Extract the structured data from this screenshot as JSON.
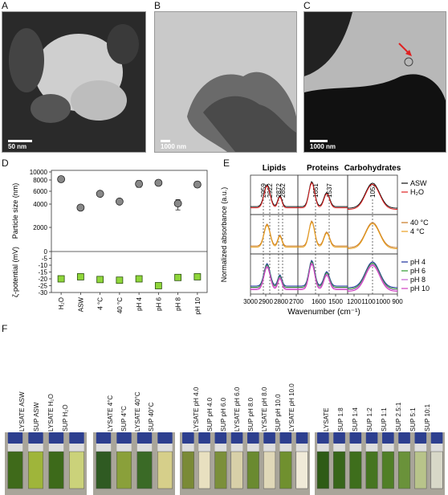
{
  "panels": {
    "A": {
      "letter": "A",
      "scale_label": "50 nm"
    },
    "B": {
      "letter": "B",
      "scale_label": "1000 nm"
    },
    "C": {
      "letter": "C",
      "scale_label": "1000 nm"
    },
    "D": {
      "letter": "D"
    },
    "E": {
      "letter": "E"
    },
    "F": {
      "letter": "F"
    }
  },
  "colors": {
    "marker_gray": "#888888",
    "marker_green": "#8fd63a",
    "arrow_red": "#e02020"
  },
  "chart_data": [
    {
      "type": "scatter",
      "panel": "D",
      "categories": [
        "H₂O",
        "ASW",
        "4 °C",
        "40 °C",
        "pH 4",
        "pH 6",
        "pH 8",
        "pH 10"
      ],
      "ylabel_top": "Particle size (nm)",
      "ylabel_bottom": "ζ-potential (mV)",
      "yticks_top": [
        "10000",
        "8000",
        "6000",
        "4000",
        "2000",
        "0"
      ],
      "yticks_bottom": [
        "-5",
        "-10",
        "-15",
        "-20",
        "-25",
        "-30"
      ],
      "series": [
        {
          "values": [
            8200,
            3700,
            5600,
            4400,
            7300,
            7500,
            4100,
            7200
          ],
          "errors": [
            350,
            150,
            400,
            300,
            600,
            400,
            600,
            500
          ]
        },
        {
          "values": [
            -20,
            -18.5,
            -20.5,
            -21,
            -20,
            -25,
            -19,
            -18.5
          ],
          "errors": [
            1,
            0.8,
            0.8,
            0.8,
            1,
            0.8,
            0.8,
            0.8
          ]
        }
      ]
    },
    {
      "type": "line",
      "panel": "E",
      "section_titles": [
        "Lipids",
        "Proteins",
        "Carbohydrates"
      ],
      "peak_labels": [
        "2959",
        "2922",
        "2872",
        "2852",
        "1651",
        "1537",
        "1052"
      ],
      "xlabel": "Wavenumber (cm⁻¹)",
      "ylabel": "Normalized absorbance (a.u.)",
      "xticks": [
        "3000",
        "2900",
        "2800",
        "2700",
        "1600",
        "1500",
        "1200",
        "1100",
        "1000",
        "900"
      ],
      "legend_groups": [
        [
          {
            "name": "ASW",
            "color": "#111111"
          },
          {
            "name": "H₂O",
            "color": "#e02020"
          }
        ],
        [
          {
            "name": "40 °C",
            "color": "#c87820"
          },
          {
            "name": "4 °C",
            "color": "#e8a020"
          }
        ],
        [
          {
            "name": "pH 4",
            "color": "#1a2f9c"
          },
          {
            "name": "pH 6",
            "color": "#2e9a2e"
          },
          {
            "name": "pH 8",
            "color": "#c060d0"
          },
          {
            "name": "pH 10",
            "color": "#d040c0"
          }
        ]
      ]
    }
  ],
  "vials": {
    "group1": [
      "LYSATE ASW",
      "SUP ASW",
      "LYSATE H₂O",
      "SUP H₂O"
    ],
    "group2": [
      "LYSATE 4°C",
      "SUP 4°C",
      "LYSATE 40°C",
      "SUP 40°C"
    ],
    "group3": [
      "LYSATE pH 4.0",
      "SUP pH 4.0",
      "SUP pH 6.0",
      "LYSATE pH 6.0",
      "SUP pH 8.0",
      "LYSATE pH 8.0",
      "SUP pH 10.0",
      "LYSATE pH 10.0"
    ],
    "group4": [
      "LYSATE",
      "SUP 1:8",
      "SUP 1:4",
      "SUP 1:2",
      "SUP 1:1",
      "SUP 2.5:1",
      "SUP 5:1",
      "SUP 10:1"
    ]
  }
}
